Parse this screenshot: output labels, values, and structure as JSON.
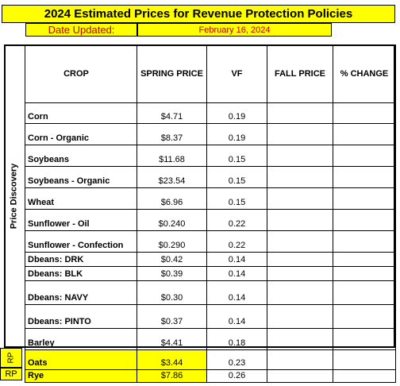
{
  "title": "2024 Estimated Prices for Revenue Protection Policies",
  "date_label": "Date Updated:",
  "date_value": "February 16, 2024",
  "side_label": "Price Discovery",
  "rp_label": "RP",
  "columns": [
    "CROP",
    "SPRING PRICE",
    "VF",
    "FALL PRICE",
    "% CHANGE"
  ],
  "rows": [
    {
      "crop": "Corn",
      "spring": "$4.71",
      "vf": "0.19",
      "fall": "",
      "pct": ""
    },
    {
      "crop": "Corn - Organic",
      "spring": "$8.37",
      "vf": "0.19",
      "fall": "",
      "pct": ""
    },
    {
      "crop": "Soybeans",
      "spring": "$11.68",
      "vf": "0.15",
      "fall": "",
      "pct": ""
    },
    {
      "crop": "Soybeans - Organic",
      "spring": "$23.54",
      "vf": "0.15",
      "fall": "",
      "pct": ""
    },
    {
      "crop": "Wheat",
      "spring": "$6.96",
      "vf": "0.15",
      "fall": "",
      "pct": ""
    },
    {
      "crop": "Sunflower - Oil",
      "spring": "$0.240",
      "vf": "0.22",
      "fall": "",
      "pct": ""
    },
    {
      "crop": "Sunflower - Confection",
      "spring": "$0.290",
      "vf": "0.22",
      "fall": "",
      "pct": ""
    },
    {
      "crop": "Dbeans: DRK",
      "spring": "$0.42",
      "vf": "0.14",
      "fall": "",
      "pct": ""
    },
    {
      "crop": "Dbeans: BLK",
      "spring": "$0.39",
      "vf": "0.14",
      "fall": "",
      "pct": ""
    },
    {
      "crop": "Dbeans: NAVY",
      "spring": "$0.30",
      "vf": "0.14",
      "fall": "",
      "pct": ""
    },
    {
      "crop": "Dbeans: PINTO",
      "spring": "$0.37",
      "vf": "0.14",
      "fall": "",
      "pct": ""
    },
    {
      "crop": "Barley",
      "spring": "$4.41",
      "vf": "0.18",
      "fall": "",
      "pct": ""
    },
    {
      "crop": "Oats",
      "spring": "$3.44",
      "vf": "0.23",
      "fall": "",
      "pct": ""
    },
    {
      "crop": "Rye",
      "spring": "$7.86",
      "vf": "0.26",
      "fall": "",
      "pct": ""
    }
  ],
  "colors": {
    "highlight": "#ffff00",
    "date_text": "#c00000"
  }
}
